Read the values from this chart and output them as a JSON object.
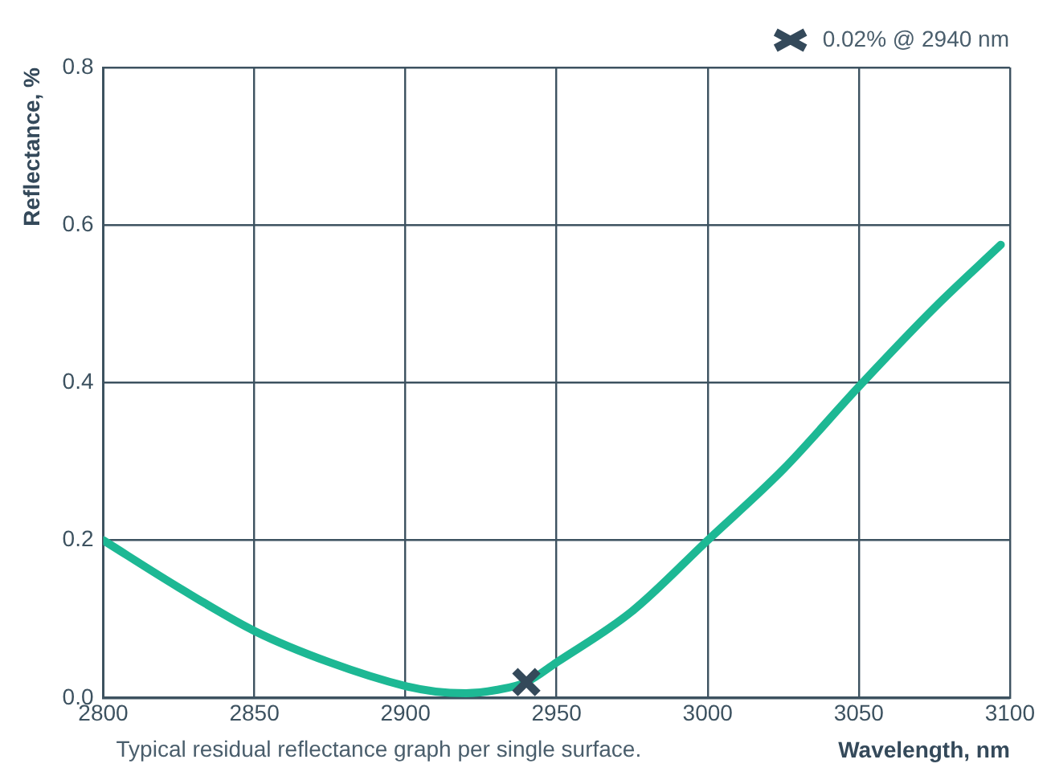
{
  "chart_data": {
    "type": "line",
    "xlabel": "Wavelength, nm",
    "ylabel": "Reflectance, %",
    "annotations": [
      "Typical residual reflectance graph per single surface."
    ],
    "x": [
      2800,
      2825,
      2850,
      2875,
      2900,
      2910,
      2920,
      2930,
      2940,
      2950,
      2975,
      3000,
      3025,
      3050,
      3075,
      3097
    ],
    "series": [
      {
        "color": "#1db894",
        "values": [
          0.2,
          0.14,
          0.085,
          0.045,
          0.015,
          0.008,
          0.006,
          0.01,
          0.02,
          0.045,
          0.11,
          0.2,
          0.29,
          0.395,
          0.495,
          0.575
        ]
      },
      {
        "name": "0.02% @ 2940 nm",
        "type": "scatter",
        "marker": "cross",
        "color": "#34495a",
        "x": [
          2940
        ],
        "values": [
          0.02
        ]
      }
    ],
    "xlim": [
      2800,
      3100
    ],
    "xticks": [
      2800,
      2850,
      2900,
      2950,
      3000,
      3050,
      3100
    ],
    "ylim": [
      0,
      0.8
    ],
    "yticks": [
      {
        "value": 0,
        "label": "0.0"
      },
      0.2,
      0.4,
      0.6,
      0.8
    ],
    "grid": true,
    "legend": "top right",
    "marker": "none",
    "line_style": "solid"
  }
}
